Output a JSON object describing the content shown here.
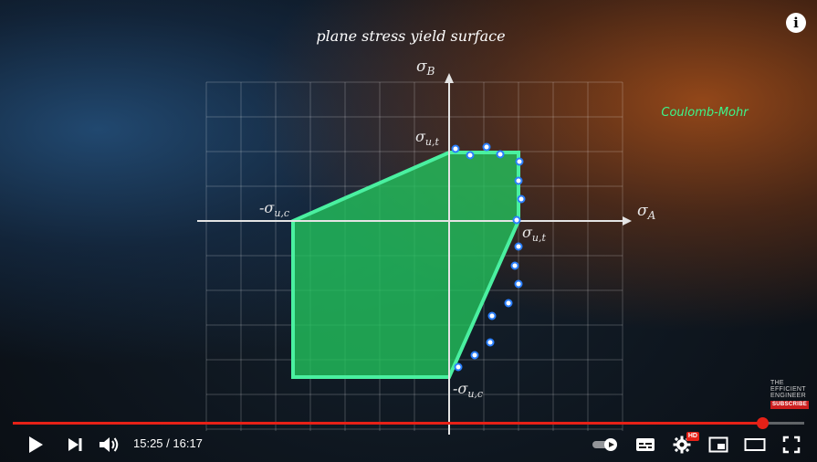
{
  "video": {
    "title": "plane stress yield surface",
    "legend_label": "Coulomb-Mohr",
    "legend_color": "#3cf58a",
    "fill_color": "#22c55e",
    "outline_color": "#4af0a0",
    "marker_color": "#2a7fff",
    "axis_labels": {
      "x_base": "σ",
      "x_sub": "A",
      "y_base": "σ",
      "y_sub": "B"
    },
    "point_labels": {
      "y_top_base": "σ",
      "y_top_sub": "u,t",
      "x_right_base": "σ",
      "x_right_sub": "u,t",
      "x_left_prefix": "-σ",
      "x_left_sub": "u,c",
      "y_bottom_prefix": "-σ",
      "y_bottom_sub": "u,c"
    },
    "chart_data": {
      "type": "area",
      "title": "plane stress yield surface",
      "xlabel": "σA",
      "ylabel": "σB",
      "series": [
        {
          "name": "Coulomb-Mohr",
          "points": [
            [
              1,
              1
            ],
            [
              0,
              1
            ],
            [
              -1,
              0
            ],
            [
              -1,
              -1
            ],
            [
              0,
              -1
            ],
            [
              1,
              0
            ]
          ]
        }
      ],
      "ticks": [
        "σu,t",
        "-σu,c"
      ]
    }
  },
  "watermark": {
    "line1": "THE",
    "line2": "EFFICIENT",
    "line3": "ENGINEER",
    "subscribe": "SUBSCRIBE"
  },
  "info_icon": "info-icon",
  "player": {
    "current_time": "15:25",
    "duration": "16:17",
    "time_text": "15:25 / 16:17",
    "progress": 0.947,
    "progress_color": "#e62117",
    "hd_label": "HD",
    "icons": {
      "play": "play-icon",
      "next": "next-icon",
      "volume": "volume-icon",
      "autoplay": "autoplay-toggle-icon",
      "captions": "captions-icon",
      "settings": "gear-icon",
      "miniplayer": "miniplayer-icon",
      "theater": "theater-mode-icon",
      "fullscreen": "fullscreen-icon"
    }
  }
}
